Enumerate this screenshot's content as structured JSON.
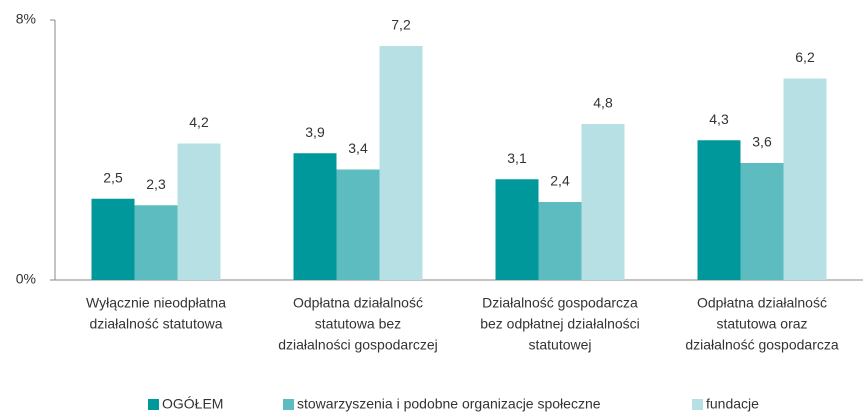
{
  "chart_data": {
    "type": "bar",
    "categories": [
      [
        "Wyłącznie nieodpłatna",
        "działalność statutowa"
      ],
      [
        "Odpłatna działalność",
        "statutowa bez",
        "działalności gospodarczej"
      ],
      [
        "Działalność gospodarcza",
        "bez odpłatnej działalności",
        "statutowej"
      ],
      [
        "Odpłatna działalność",
        "statutowa oraz",
        "działalność gospodarcza"
      ]
    ],
    "series": [
      {
        "name": "OGÓŁEM",
        "color": "#00989a",
        "values": [
          2.5,
          3.9,
          3.1,
          4.3
        ],
        "value_labels": [
          "2,5",
          "3,9",
          "3,1",
          "4,3"
        ]
      },
      {
        "name": "stowarzyszenia i podobne organizacje społeczne",
        "color": "#5cbcc0",
        "values": [
          2.3,
          3.4,
          2.4,
          3.6
        ],
        "value_labels": [
          "2,3",
          "3,4",
          "2,4",
          "3,6"
        ]
      },
      {
        "name": "fundacje",
        "color": "#b6e0e3",
        "values": [
          4.2,
          7.2,
          4.8,
          6.2
        ],
        "value_labels": [
          "4,2",
          "7,2",
          "4,8",
          "6,2"
        ]
      }
    ],
    "ylim": [
      0,
      8
    ],
    "yticks": [
      {
        "value": 0,
        "label": "0%"
      },
      {
        "value": 8,
        "label": "8%"
      }
    ],
    "legend": "bottom"
  }
}
